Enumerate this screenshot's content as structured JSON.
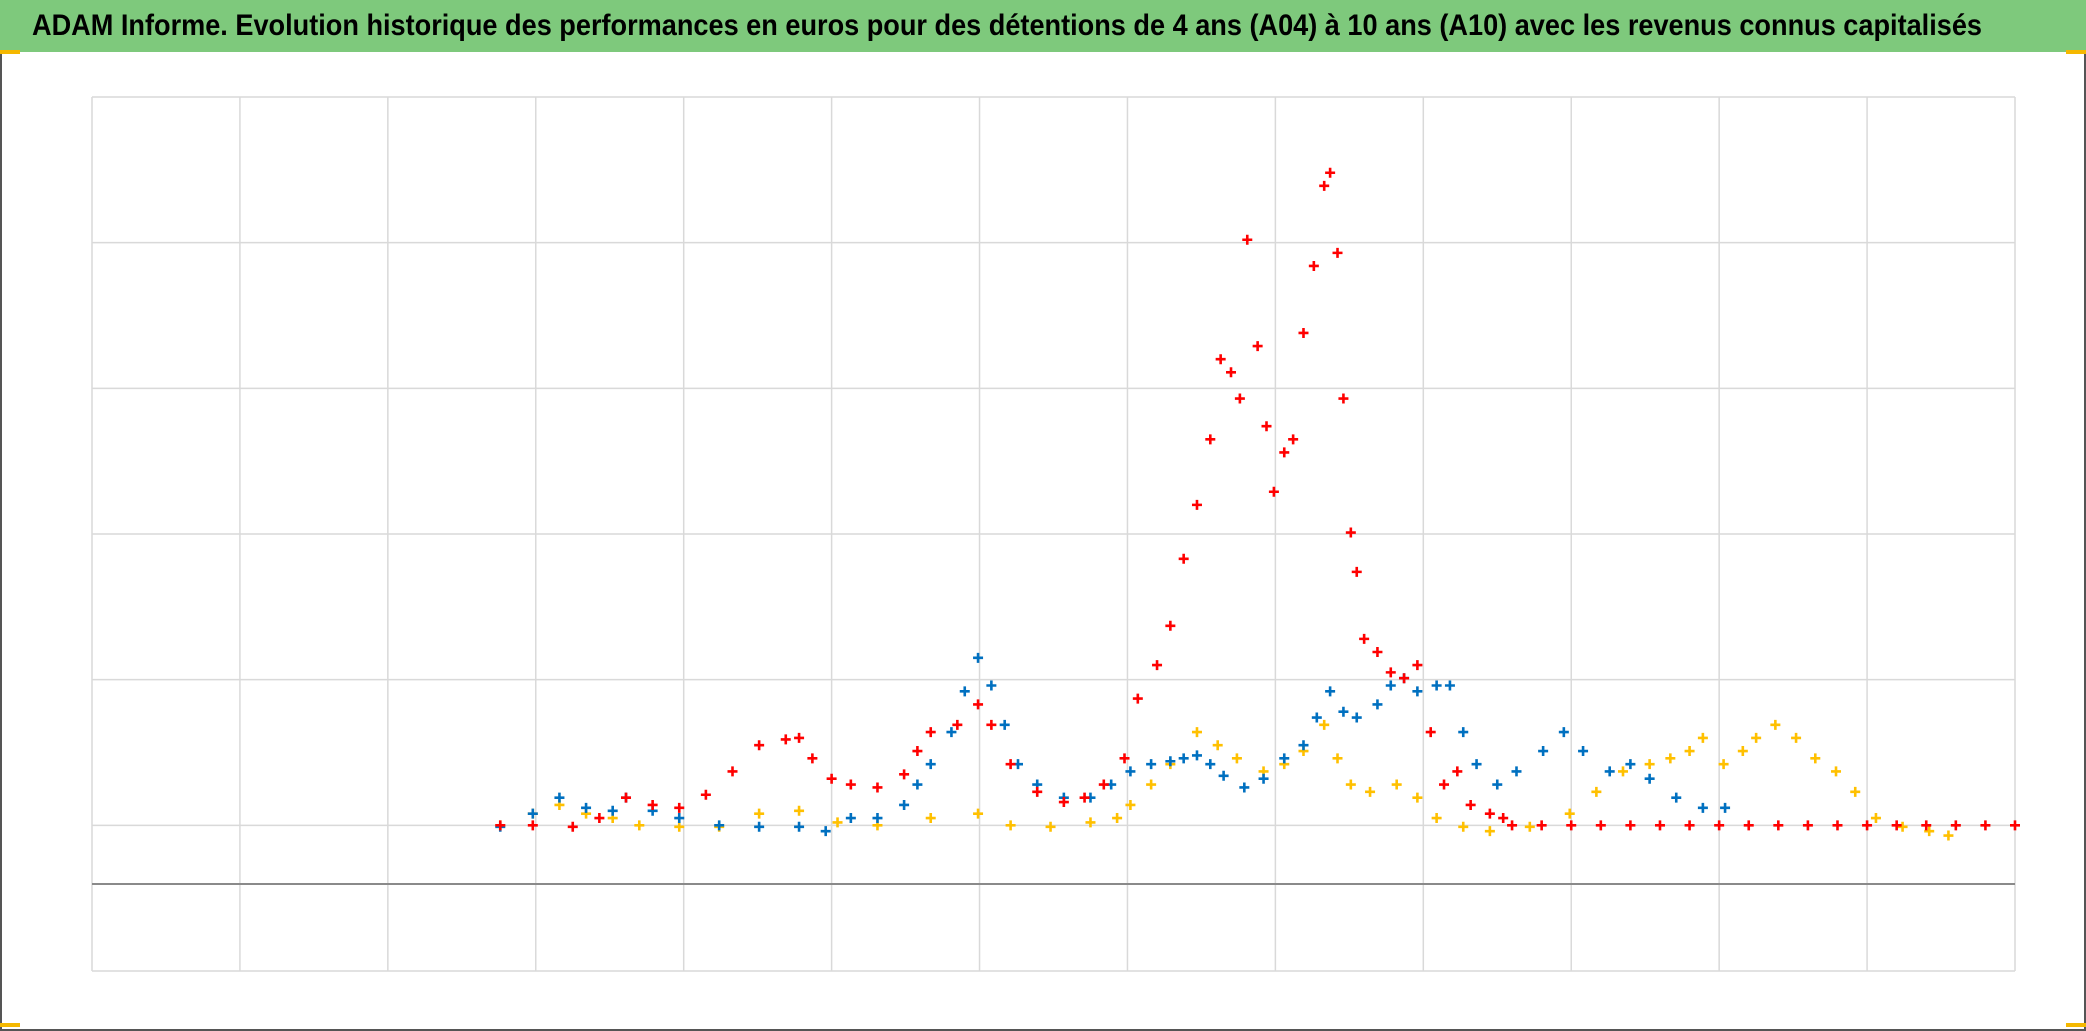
{
  "chart_data": {
    "type": "scatter",
    "title": "ADAM Informe. Evolution historique des performances en euros pour des détentions de 4 ans (A04) à 10 ans (A10) avec les revenus connus capitalisés",
    "marker": "+",
    "grid": true,
    "tick_labels": false,
    "xlim": [
      0,
      13
    ],
    "xticks": [
      0,
      1,
      2,
      3,
      4,
      5,
      6,
      7,
      8,
      9,
      10,
      11,
      12,
      13
    ],
    "ylim": [
      0,
      600
    ],
    "yticks": [
      0,
      100,
      200,
      300,
      400,
      500,
      600
    ],
    "series": [
      {
        "color": "#ffc000",
        "x": [
          2.76,
          2.98,
          3.16,
          3.34,
          3.52,
          3.7,
          3.97,
          4.24,
          4.51,
          4.78,
          5.04,
          5.31,
          5.67,
          5.99,
          6.21,
          6.48,
          6.75,
          6.93,
          7.02,
          7.16,
          7.29,
          7.47,
          7.61,
          7.74,
          7.92,
          8.06,
          8.19,
          8.33,
          8.42,
          8.51,
          8.64,
          8.82,
          8.96,
          9.09,
          9.27,
          9.45,
          9.72,
          9.99,
          10.17,
          10.35,
          10.53,
          10.67,
          10.8,
          10.89,
          11.03,
          11.16,
          11.25,
          11.38,
          11.52,
          11.65,
          11.79,
          11.92,
          12.06,
          12.24,
          12.42,
          12.55
        ],
        "values": [
          100,
          108,
          114,
          108,
          105,
          100,
          99,
          99,
          108,
          110,
          102,
          100,
          105,
          108,
          100,
          99,
          102,
          105,
          114,
          128,
          142,
          164,
          155,
          146,
          137,
          142,
          151,
          169,
          146,
          128,
          123,
          128,
          119,
          105,
          99,
          96,
          99,
          108,
          123,
          137,
          142,
          146,
          151,
          160,
          142,
          151,
          160,
          169,
          160,
          146,
          137,
          123,
          105,
          99,
          96,
          93
        ]
      },
      {
        "color": "#0070c0",
        "x": [
          2.76,
          2.98,
          3.16,
          3.34,
          3.52,
          3.61,
          3.79,
          3.97,
          4.24,
          4.51,
          4.78,
          4.96,
          5.13,
          5.31,
          5.49,
          5.58,
          5.67,
          5.81,
          5.9,
          5.99,
          6.08,
          6.17,
          6.26,
          6.39,
          6.57,
          6.75,
          6.89,
          7.02,
          7.16,
          7.29,
          7.38,
          7.47,
          7.56,
          7.65,
          7.79,
          7.92,
          8.06,
          8.19,
          8.28,
          8.37,
          8.46,
          8.55,
          8.69,
          8.78,
          8.87,
          8.96,
          9.09,
          9.18,
          9.27,
          9.36,
          9.5,
          9.63,
          9.81,
          9.95,
          10.08,
          10.26,
          10.4,
          10.53,
          10.71,
          10.89,
          11.04
        ],
        "values": [
          99,
          108,
          119,
          112,
          110,
          119,
          110,
          105,
          100,
          99,
          99,
          96,
          105,
          105,
          114,
          128,
          142,
          164,
          192,
          215,
          196,
          169,
          142,
          128,
          119,
          119,
          128,
          137,
          142,
          144,
          146,
          148,
          142,
          134,
          126,
          132,
          146,
          155,
          174,
          192,
          178,
          174,
          183,
          196,
          201,
          192,
          196,
          196,
          164,
          142,
          128,
          137,
          151,
          164,
          151,
          137,
          142,
          132,
          119,
          112,
          112
        ]
      },
      {
        "color": "#ff0000",
        "x": [
          2.76,
          2.98,
          3.25,
          3.43,
          3.61,
          3.79,
          3.97,
          4.15,
          4.33,
          4.51,
          4.69,
          4.78,
          4.87,
          5.0,
          5.13,
          5.31,
          5.49,
          5.58,
          5.67,
          5.85,
          5.99,
          6.08,
          6.21,
          6.39,
          6.57,
          6.71,
          6.84,
          6.98,
          7.07,
          7.2,
          7.29,
          7.38,
          7.47,
          7.56,
          7.63,
          7.7,
          7.76,
          7.81,
          7.88,
          7.94,
          7.99,
          8.06,
          8.12,
          8.19,
          8.26,
          8.33,
          8.37,
          8.42,
          8.46,
          8.51,
          8.55,
          8.6,
          8.69,
          8.78,
          8.87,
          8.96,
          9.05,
          9.14,
          9.23,
          9.32,
          9.45,
          9.54,
          9.6,
          9.8,
          10.0,
          10.2,
          10.4,
          10.6,
          10.8,
          11.0,
          11.2,
          11.4,
          11.6,
          11.8,
          12.0,
          12.2,
          12.4,
          12.6,
          12.8,
          13.0
        ],
        "values": [
          100,
          100,
          99,
          105,
          119,
          114,
          112,
          121,
          137,
          155,
          159,
          160,
          146,
          132,
          128,
          126,
          135,
          151,
          164,
          169,
          183,
          169,
          142,
          123,
          116,
          119,
          128,
          146,
          187,
          210,
          237,
          283,
          320,
          365,
          420,
          411,
          393,
          502,
          429,
          374,
          329,
          356,
          365,
          438,
          484,
          539,
          548,
          493,
          393,
          301,
          274,
          228,
          219,
          205,
          201,
          210,
          164,
          128,
          137,
          114,
          108,
          105,
          100,
          100,
          100,
          100,
          100,
          100,
          100,
          100,
          100,
          100,
          100,
          100,
          100,
          100,
          100,
          100,
          100,
          100
        ]
      }
    ]
  }
}
